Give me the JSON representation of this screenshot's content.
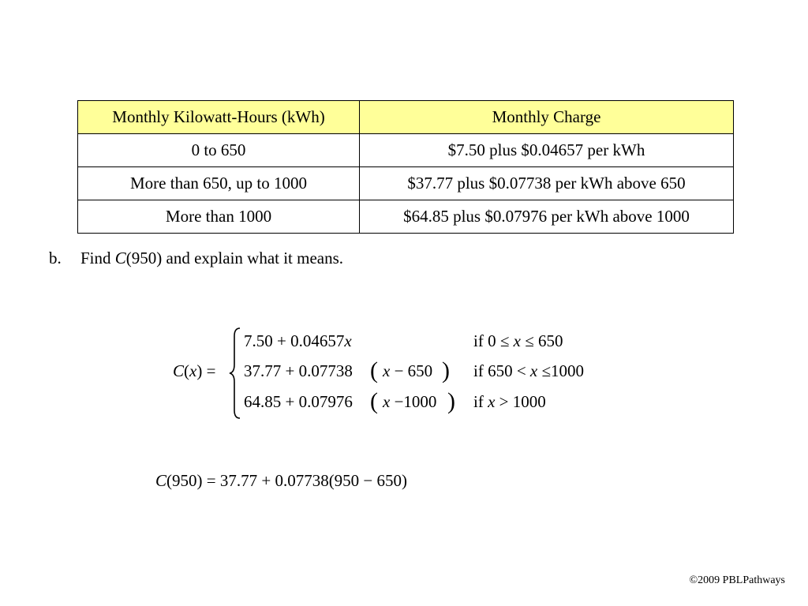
{
  "table": {
    "headers": [
      "Monthly Kilowatt-Hours (kWh)",
      "Monthly Charge"
    ],
    "rows": [
      [
        "0 to 650",
        "$7.50 plus $0.04657 per kWh"
      ],
      [
        "More than 650, up to 1000",
        "$37.77 plus $0.07738 per kWh above 650"
      ],
      [
        "More than 1000",
        "$64.85 plus $0.07976 per kWh above 1000"
      ]
    ],
    "header_bg": "#ffff99"
  },
  "question": {
    "label": "b.",
    "text_before": "Find ",
    "func": "C",
    "text_after": "(950) and explain what it means."
  },
  "piecewise": {
    "lhs_func": "C",
    "lhs_open": "(",
    "lhs_var": "x",
    "lhs_close": ") =",
    "cases": [
      {
        "expr_a": "7.50 + 0.04657",
        "expr_var": "x",
        "expr_b": "",
        "cond_pre": "if 0 ≤",
        "cond_var": "x",
        "cond_post": "≤ 650"
      },
      {
        "expr_a": "37.77 + 0.07738",
        "expr_var": "x",
        "expr_b": "− 650",
        "cond_pre": "if 650 <",
        "cond_var": "x",
        "cond_post": "≤1000"
      },
      {
        "expr_a": "64.85 + 0.07976",
        "expr_var": "x",
        "expr_b": "−1000",
        "cond_pre": "if",
        "cond_var": "x",
        "cond_post": "> 1000"
      }
    ]
  },
  "evaluation": {
    "func": "C",
    "rest": "(950) = 37.77 + 0.07738(950 − 650)"
  },
  "footer": "©2009 PBLPathways"
}
